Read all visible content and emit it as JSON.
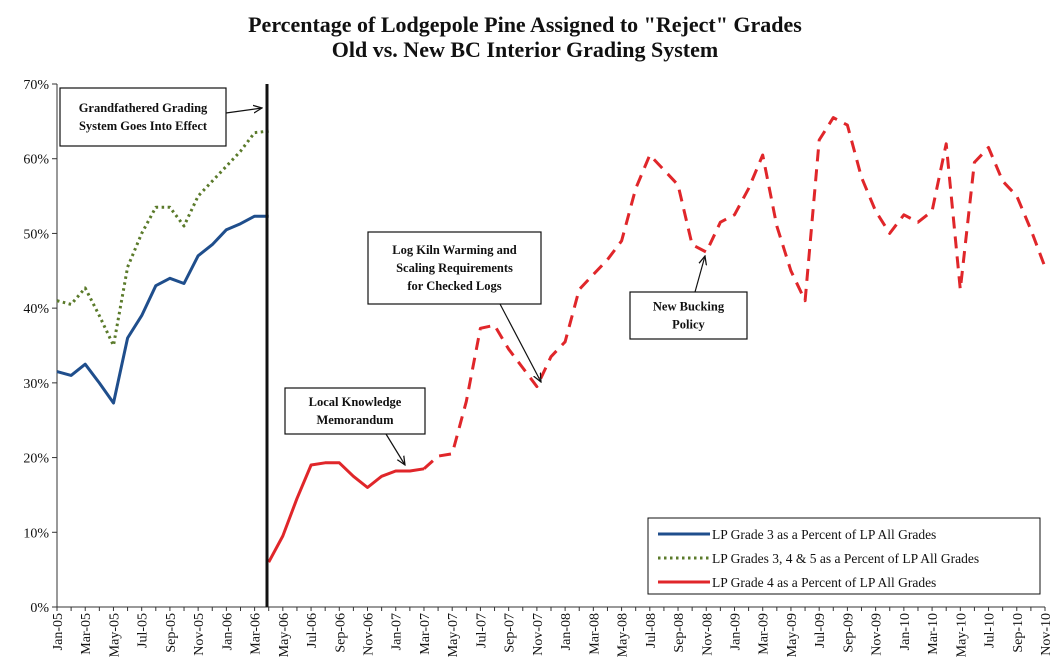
{
  "chart_data": {
    "type": "line",
    "title": [
      "Percentage of Lodgepole Pine Assigned to \"Reject\" Grades",
      "Old vs. New BC Interior Grading System"
    ],
    "categories": [
      "Jan-05",
      null,
      "Mar-05",
      null,
      "May-05",
      null,
      "Jul-05",
      null,
      "Sep-05",
      null,
      "Nov-05",
      null,
      "Jan-06",
      null,
      "Mar-06",
      null,
      "May-06",
      null,
      "Jul-06",
      null,
      "Sep-06",
      null,
      "Nov-06",
      null,
      "Jan-07",
      null,
      "Mar-07",
      null,
      "May-07",
      null,
      "Jul-07",
      null,
      "Sep-07",
      null,
      "Nov-07",
      null,
      "Jan-08",
      null,
      "Mar-08",
      null,
      "May-08",
      null,
      "Jul-08",
      null,
      "Sep-08",
      null,
      "Nov-08",
      null,
      "Jan-09",
      null,
      "Mar-09",
      null,
      "May-09",
      null,
      "Jul-09",
      null,
      "Sep-09",
      null,
      "Nov-09",
      null,
      "Jan-10",
      null,
      "Mar-10",
      null,
      "May-10",
      null,
      "Jul-10",
      null,
      "Sep-10",
      null,
      "Nov-10"
    ],
    "series": [
      {
        "name": "LP Grade 3 as a Percent of LP All Grades",
        "color": "#1f4e8c",
        "style": "solid",
        "values": [
          31.5,
          31,
          32.5,
          30,
          27.3,
          36,
          39,
          43,
          44,
          43.3,
          47,
          48.5,
          50.5,
          51.3,
          52.3,
          52.3,
          null,
          null,
          null,
          null,
          null,
          null,
          null,
          null,
          null,
          null,
          null,
          null,
          null,
          null,
          null,
          null,
          null,
          null,
          null,
          null,
          null,
          null,
          null,
          null,
          null,
          null,
          null,
          null,
          null,
          null,
          null,
          null,
          null,
          null,
          null,
          null,
          null,
          null,
          null,
          null,
          null,
          null,
          null,
          null,
          null,
          null,
          null,
          null,
          null,
          null,
          null,
          null,
          null,
          null,
          null
        ]
      },
      {
        "name": "LP Grades 3, 4 & 5 as a Percent of LP All Grades",
        "color": "#5a7a2a",
        "style": "dotted",
        "values": [
          41,
          40.5,
          42.7,
          39,
          35,
          45.5,
          50,
          53.5,
          53.5,
          51,
          55,
          57,
          59,
          61,
          63.5,
          63.7,
          null,
          null,
          null,
          null,
          null,
          null,
          null,
          null,
          null,
          null,
          null,
          null,
          null,
          null,
          null,
          null,
          null,
          null,
          null,
          null,
          null,
          null,
          null,
          null,
          null,
          null,
          null,
          null,
          null,
          null,
          null,
          null,
          null,
          null,
          null,
          null,
          null,
          null,
          null,
          null,
          null,
          null,
          null,
          null,
          null,
          null,
          null,
          null,
          null,
          null,
          null,
          null,
          null,
          null,
          null
        ]
      },
      {
        "name": "LP Grade 4 as a Percent of LP All Grades",
        "color": "#e0262a",
        "style": "solid",
        "dash_start": 26,
        "values": [
          null,
          null,
          null,
          null,
          null,
          null,
          null,
          null,
          null,
          null,
          null,
          null,
          null,
          null,
          null,
          6,
          9.5,
          14.5,
          19,
          19.3,
          19.3,
          17.5,
          16,
          17.5,
          18.2,
          18.2,
          18.5,
          20.2,
          20.5,
          27.5,
          37.3,
          37.7,
          34.5,
          32,
          29.5,
          33.5,
          35.5,
          42.5,
          44.5,
          46.5,
          49,
          56,
          60.5,
          58.5,
          56.5,
          48.5,
          47.5,
          51.5,
          52.5,
          56,
          60.5,
          51,
          45,
          41,
          62.5,
          65.5,
          64.5,
          57.5,
          53,
          50,
          52.5,
          51.5,
          53,
          62,
          42.5,
          59.5,
          61.5,
          57,
          55,
          50.5,
          45.5
        ]
      }
    ],
    "ylim": [
      0,
      70
    ],
    "yticks": [
      {
        "value": 0,
        "label": "0%"
      },
      {
        "value": 10,
        "label": "10%"
      },
      {
        "value": 20,
        "label": "20%"
      },
      {
        "value": 30,
        "label": "30%"
      },
      {
        "value": 40,
        "label": "40%"
      },
      {
        "value": 50,
        "label": "50%"
      },
      {
        "value": 60,
        "label": "60%"
      },
      {
        "value": 70,
        "label": "70%"
      }
    ],
    "legend": "lower right",
    "annotations": [
      {
        "text": [
          "Grandfathered Grading",
          "System Goes Into Effect"
        ]
      },
      {
        "text": [
          "Local Knowledge",
          "Memorandum"
        ]
      },
      {
        "text": [
          "Log Kiln Warming and",
          "Scaling Requirements",
          "for Checked Logs"
        ]
      },
      {
        "text": [
          "New Bucking",
          "Policy"
        ]
      }
    ]
  }
}
